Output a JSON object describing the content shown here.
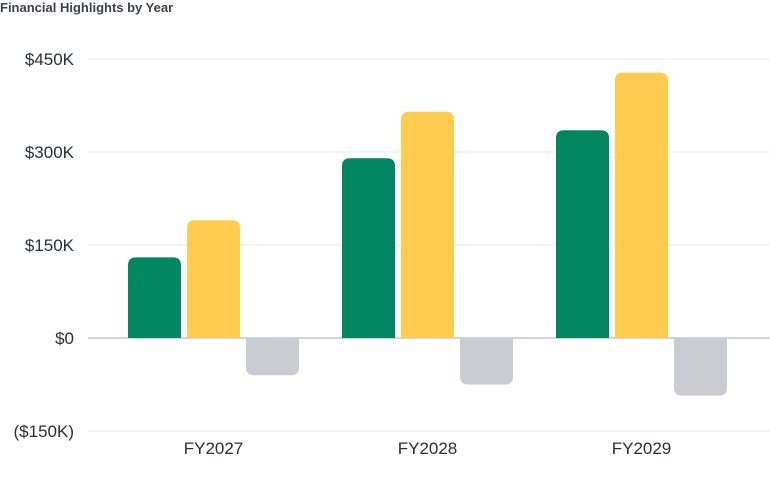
{
  "chart_data": {
    "type": "bar",
    "title": "Financial Highlights by Year",
    "xlabel": "",
    "ylabel": "",
    "categories": [
      "FY2027",
      "FY2028",
      "FY2029"
    ],
    "series": [
      {
        "values": [
          130,
          290,
          335
        ],
        "color": "#00875f"
      },
      {
        "values": [
          190,
          365,
          428
        ],
        "color": "#ffcc4f"
      },
      {
        "values": [
          -60,
          -75,
          -93
        ],
        "color": "#c9ccd1"
      }
    ],
    "ylim": [
      -150,
      450
    ],
    "yticks": [
      -150,
      0,
      150,
      300,
      450
    ],
    "ytick_labels": [
      "($150K)",
      "$0",
      "$150K",
      "$300K",
      "$450K"
    ],
    "units": "thousands of dollars",
    "grid": true,
    "legend": "none"
  }
}
